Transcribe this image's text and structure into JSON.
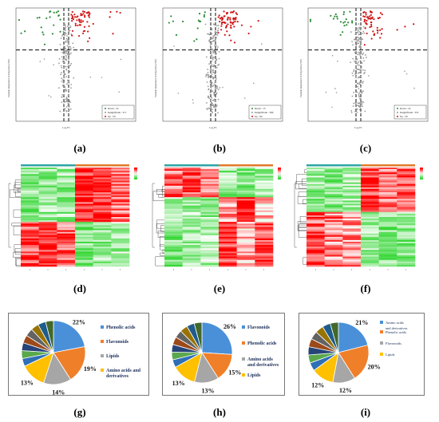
{
  "captions": [
    "(a)",
    "(b)",
    "(c)",
    "(d)",
    "(e)",
    "(f)",
    "(g)",
    "(h)",
    "(i)"
  ],
  "volcano": {
    "ylabel": "Variable Importance in Projection (VIP)",
    "xlabel": "Log₂FC",
    "legend_panels": [
      [
        "Down : 22",
        "Insignificant : 317",
        "Up : 59"
      ],
      [
        "Down : 15",
        "Insignificant : 390",
        "Up : 66"
      ],
      [
        "Down : 22",
        "Insignificant : 355",
        "Up : 59"
      ]
    ],
    "colors": {
      "down": "#2e8b3a",
      "insig": "#9a9a9a",
      "up": "#d01818"
    }
  },
  "heatmap": {
    "scale_colors": [
      "#ff0000",
      "#ffffff",
      "#00cc00"
    ]
  },
  "pies": [
    {
      "labels": [
        "22%",
        "19%",
        "14%",
        "13%"
      ],
      "legend": [
        "Phenolic acids",
        "Flavonoids",
        "Lipids",
        "Amino acids and derivatives"
      ],
      "legend_colors": [
        "#4a90d9",
        "#f07f2a",
        "#a6a6a6",
        "#ffc000"
      ]
    },
    {
      "labels": [
        "26%",
        "15%",
        "13%",
        "13%"
      ],
      "legend": [
        "Flavonoids",
        "Phenolic acids",
        "Amino acids and derivatives",
        "Lipids"
      ],
      "legend_colors": [
        "#4a90d9",
        "#f07f2a",
        "#a6a6a6",
        "#ffc000"
      ]
    },
    {
      "labels": [
        "21%",
        "20%",
        "12%",
        "12%"
      ],
      "legend": [
        "Amino acids and derivatives",
        "Phenolic acids",
        "Flavonoids",
        "Lipids"
      ],
      "legend_colors": [
        "#4a90d9",
        "#f07f2a",
        "#a6a6a6",
        "#ffc000"
      ]
    }
  ],
  "chart_data": [
    {
      "type": "scatter",
      "panel": "a",
      "series": [
        {
          "name": "Down",
          "count": 22
        },
        {
          "name": "Insignificant",
          "count": 317
        },
        {
          "name": "Up",
          "count": 59
        }
      ]
    },
    {
      "type": "scatter",
      "panel": "b",
      "series": [
        {
          "name": "Down",
          "count": 15
        },
        {
          "name": "Insignificant",
          "count": 390
        },
        {
          "name": "Up",
          "count": 66
        }
      ]
    },
    {
      "type": "scatter",
      "panel": "c",
      "series": [
        {
          "name": "Down",
          "count": 22
        },
        {
          "name": "Insignificant",
          "count": 355
        },
        {
          "name": "Up",
          "count": 59
        }
      ]
    },
    {
      "type": "heatmap",
      "panel": "d"
    },
    {
      "type": "heatmap",
      "panel": "e"
    },
    {
      "type": "heatmap",
      "panel": "f"
    },
    {
      "type": "pie",
      "panel": "g",
      "categories": [
        "Phenolic acids",
        "Flavonoids",
        "Lipids",
        "Amino acids and derivatives"
      ],
      "values": [
        22,
        19,
        14,
        13
      ]
    },
    {
      "type": "pie",
      "panel": "h",
      "categories": [
        "Flavonoids",
        "Phenolic acids",
        "Amino acids and derivatives",
        "Lipids"
      ],
      "values": [
        26,
        15,
        13,
        13
      ]
    },
    {
      "type": "pie",
      "panel": "i",
      "categories": [
        "Amino acids and derivatives",
        "Phenolic acids",
        "Flavonoids",
        "Lipids"
      ],
      "values": [
        21,
        20,
        12,
        12
      ]
    }
  ]
}
